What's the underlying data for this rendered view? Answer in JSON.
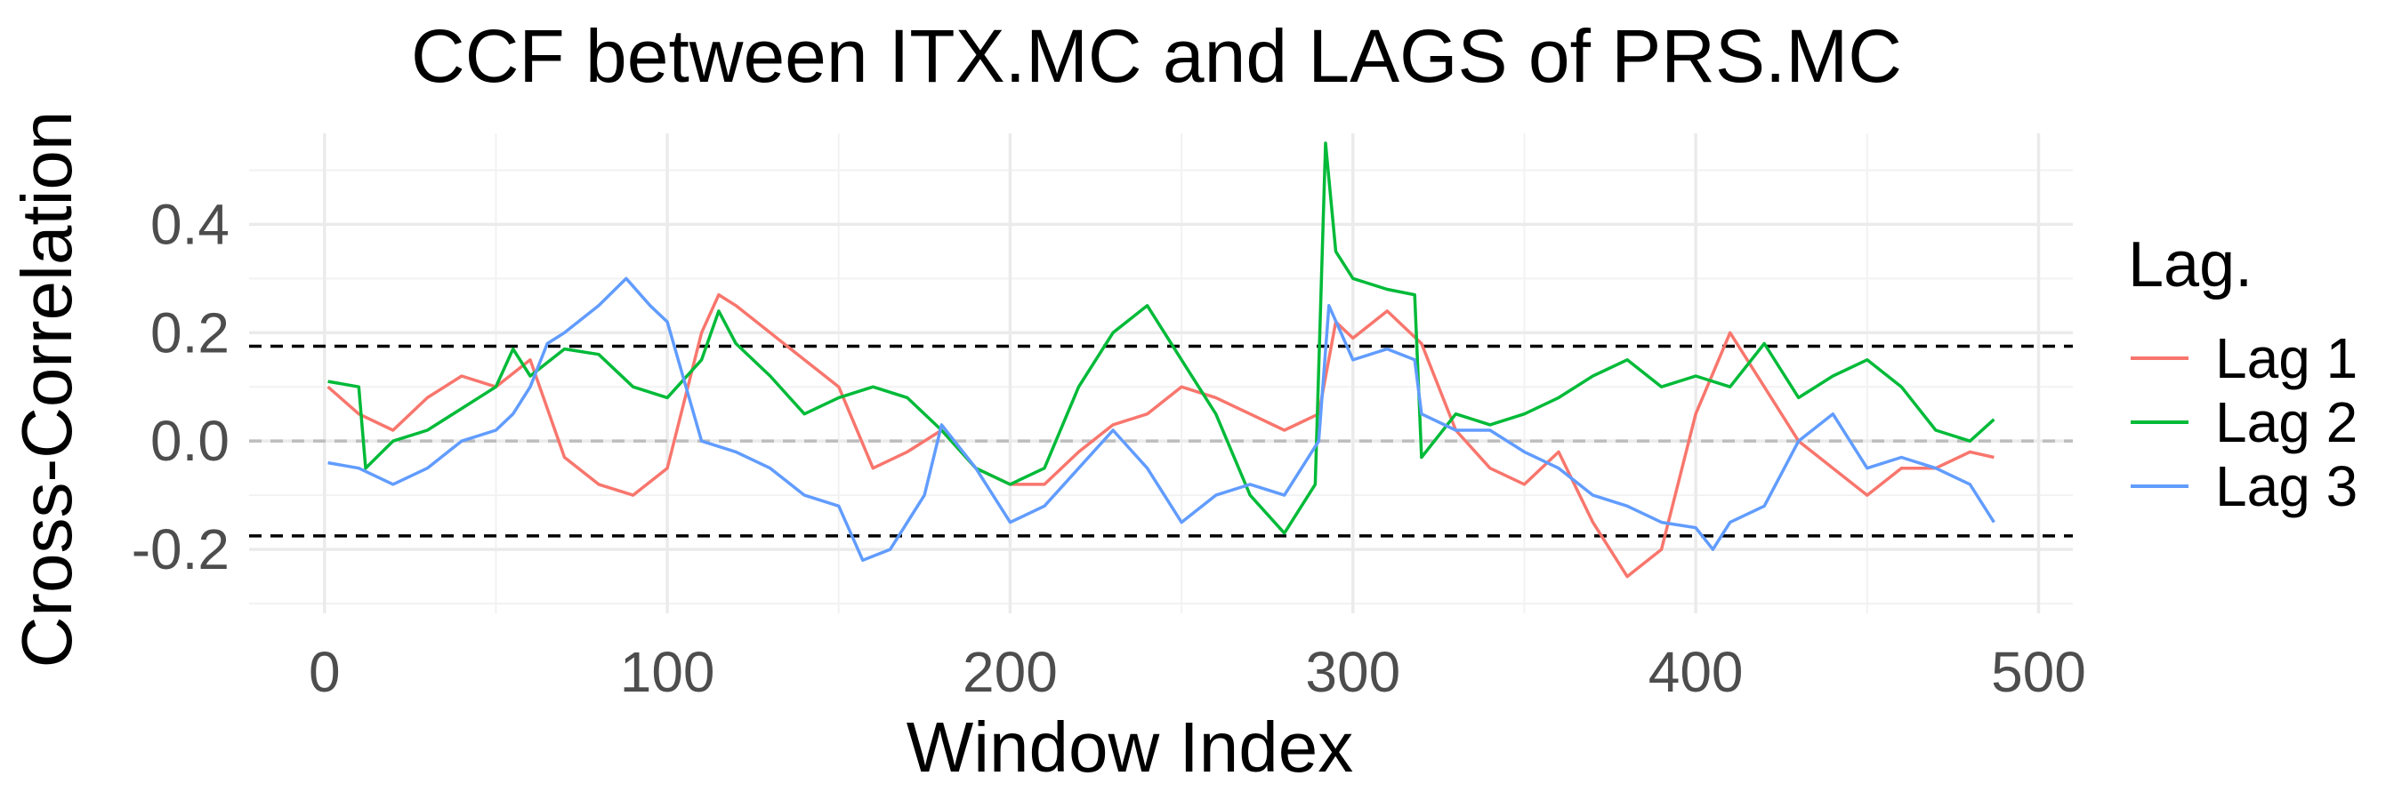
{
  "chart_data": {
    "type": "line",
    "title": "CCF between  ITX.MC and LAGS of PRS.MC",
    "xlabel": "Window Index",
    "ylabel": "Cross-Correlation",
    "xlim": [
      -22,
      510
    ],
    "ylim": [
      -0.318,
      0.568
    ],
    "x_ticks": [
      0,
      100,
      200,
      300,
      400,
      500
    ],
    "y_ticks": [
      -0.2,
      0.0,
      0.2,
      0.4
    ],
    "y_tick_labels": [
      "-0.2",
      "0.0",
      "0.2",
      "0.4"
    ],
    "grid": true,
    "legend": {
      "title": "Lag.",
      "position": "right"
    },
    "reference_lines": [
      {
        "y": 0.0,
        "style": "dashed",
        "color": "#bdbdbd"
      },
      {
        "y": 0.175,
        "style": "dashed",
        "color": "#000000"
      },
      {
        "y": -0.175,
        "style": "dashed",
        "color": "#000000"
      }
    ],
    "series": [
      {
        "name": "Lag 1",
        "color": "#F8766D",
        "x": [
          1,
          10,
          20,
          30,
          40,
          50,
          60,
          70,
          80,
          90,
          100,
          110,
          115,
          120,
          130,
          140,
          150,
          160,
          170,
          180,
          190,
          200,
          210,
          220,
          230,
          240,
          250,
          260,
          270,
          280,
          290,
          295,
          300,
          310,
          320,
          330,
          340,
          350,
          360,
          370,
          380,
          390,
          400,
          410,
          420,
          430,
          440,
          450,
          460,
          470,
          480,
          487
        ],
        "y": [
          0.1,
          0.05,
          0.02,
          0.08,
          0.12,
          0.1,
          0.15,
          -0.03,
          -0.08,
          -0.1,
          -0.05,
          0.2,
          0.27,
          0.25,
          0.2,
          0.15,
          0.1,
          -0.05,
          -0.02,
          0.02,
          -0.05,
          -0.08,
          -0.08,
          -0.02,
          0.03,
          0.05,
          0.1,
          0.08,
          0.05,
          0.02,
          0.05,
          0.22,
          0.19,
          0.24,
          0.18,
          0.02,
          -0.05,
          -0.08,
          -0.02,
          -0.15,
          -0.25,
          -0.2,
          0.05,
          0.2,
          0.1,
          0.0,
          -0.05,
          -0.1,
          -0.05,
          -0.05,
          -0.02,
          -0.03
        ]
      },
      {
        "name": "Lag 2",
        "color": "#00BA38",
        "x": [
          1,
          10,
          12,
          20,
          30,
          40,
          50,
          55,
          60,
          70,
          80,
          90,
          100,
          110,
          115,
          120,
          130,
          140,
          150,
          160,
          170,
          180,
          190,
          200,
          210,
          220,
          230,
          240,
          250,
          260,
          270,
          280,
          289,
          292,
          295,
          300,
          310,
          318,
          320,
          330,
          340,
          350,
          360,
          370,
          380,
          390,
          400,
          410,
          420,
          430,
          440,
          450,
          460,
          470,
          480,
          487
        ],
        "y": [
          0.11,
          0.1,
          -0.05,
          0.0,
          0.02,
          0.06,
          0.1,
          0.17,
          0.12,
          0.17,
          0.16,
          0.1,
          0.08,
          0.15,
          0.24,
          0.18,
          0.12,
          0.05,
          0.08,
          0.1,
          0.08,
          0.02,
          -0.05,
          -0.08,
          -0.05,
          0.1,
          0.2,
          0.25,
          0.15,
          0.05,
          -0.1,
          -0.17,
          -0.08,
          0.55,
          0.35,
          0.3,
          0.28,
          0.27,
          -0.03,
          0.05,
          0.03,
          0.05,
          0.08,
          0.12,
          0.15,
          0.1,
          0.12,
          0.1,
          0.18,
          0.08,
          0.12,
          0.15,
          0.1,
          0.02,
          0.0,
          0.04
        ]
      },
      {
        "name": "Lag 3",
        "color": "#619CFF",
        "x": [
          1,
          10,
          20,
          30,
          40,
          50,
          55,
          60,
          65,
          70,
          80,
          88,
          95,
          100,
          110,
          120,
          130,
          140,
          150,
          157,
          165,
          175,
          180,
          190,
          200,
          210,
          220,
          230,
          240,
          250,
          260,
          270,
          280,
          290,
          293,
          300,
          310,
          318,
          320,
          330,
          340,
          350,
          360,
          370,
          380,
          390,
          400,
          405,
          410,
          420,
          430,
          440,
          450,
          460,
          470,
          480,
          487
        ],
        "y": [
          -0.04,
          -0.05,
          -0.08,
          -0.05,
          0.0,
          0.02,
          0.05,
          0.1,
          0.18,
          0.2,
          0.25,
          0.3,
          0.25,
          0.22,
          0.0,
          -0.02,
          -0.05,
          -0.1,
          -0.12,
          -0.22,
          -0.2,
          -0.1,
          0.03,
          -0.05,
          -0.15,
          -0.12,
          -0.05,
          0.02,
          -0.05,
          -0.15,
          -0.1,
          -0.08,
          -0.1,
          0.0,
          0.25,
          0.15,
          0.17,
          0.15,
          0.05,
          0.02,
          0.02,
          -0.02,
          -0.05,
          -0.1,
          -0.12,
          -0.15,
          -0.16,
          -0.2,
          -0.15,
          -0.12,
          0.0,
          0.05,
          -0.05,
          -0.03,
          -0.05,
          -0.08,
          -0.15
        ]
      }
    ]
  }
}
